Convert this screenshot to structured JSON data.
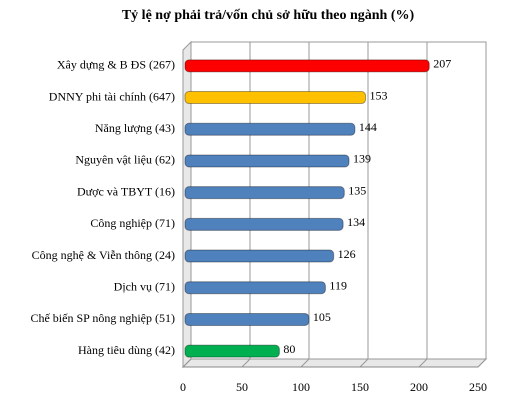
{
  "chart_data": {
    "type": "bar",
    "orientation": "horizontal",
    "title": "Tỷ lệ nợ phải trả/vốn chủ sở hữu theo ngành (%)",
    "categories": [
      "Xây dựng & B ĐS (267)",
      "DNNY phi tài chính (647)",
      "Năng lượng (43)",
      "Nguyên vật liệu (62)",
      "Dược và TBYT (16)",
      "Công nghiệp (71)",
      "Công nghệ & Viễn thông (24)",
      "Dịch vụ (71)",
      "Chế biến SP nông nghiệp (51)",
      "Hàng tiêu dùng (42)"
    ],
    "values": [
      207,
      153,
      144,
      139,
      135,
      134,
      126,
      119,
      105,
      80
    ],
    "colors": [
      "#ff0000",
      "#ffc000",
      "#4f81bd",
      "#4f81bd",
      "#4f81bd",
      "#4f81bd",
      "#4f81bd",
      "#4f81bd",
      "#4f81bd",
      "#00b050"
    ],
    "xlim": [
      0,
      250
    ],
    "xticks": [
      0,
      50,
      100,
      150,
      200,
      250
    ],
    "grid": true
  }
}
